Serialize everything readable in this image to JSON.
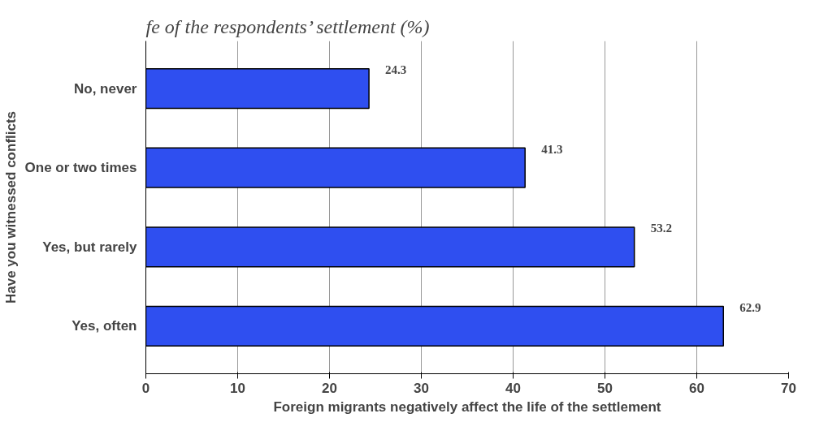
{
  "chart_data": {
    "type": "bar",
    "orientation": "horizontal",
    "title": "fe of the respondents’ settlement (%)",
    "xlabel": "Foreign migrants negatively affect the life of the settlement",
    "ylabel": "Have you witnessed conflicts",
    "categories": [
      "No, never",
      "One or two times",
      "Yes, but rarely",
      "Yes, often"
    ],
    "values": [
      24.3,
      41.3,
      53.2,
      62.9
    ],
    "color": "#2f4ff0",
    "data_labels": true,
    "xlim": [
      0,
      70
    ],
    "xticks": [
      0,
      10,
      20,
      30,
      40,
      50,
      60,
      70
    ],
    "grid": "x"
  }
}
